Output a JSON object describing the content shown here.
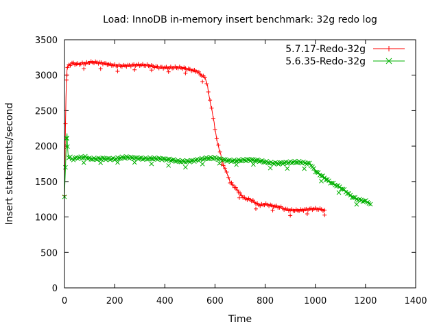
{
  "chart_data": {
    "type": "line",
    "title": "Load: InnoDB in-memory insert benchmark: 32g redo log",
    "xlabel": "Time",
    "ylabel": "Insert statements/second",
    "xlim": [
      0,
      1400
    ],
    "ylim": [
      0,
      3500
    ],
    "xticks": [
      "0",
      "200",
      "400",
      "600",
      "800",
      "1000",
      "1200",
      "1400"
    ],
    "yticks": [
      "0",
      "500",
      "1000",
      "1500",
      "2000",
      "2500",
      "3000",
      "3500"
    ],
    "grid": false,
    "legend_position": "top-right",
    "series": [
      {
        "name": "5.7.17-Redo-32g",
        "color": "#ff0000",
        "marker": "plus",
        "x": [
          0,
          2,
          4,
          6,
          8,
          10,
          12,
          15,
          20,
          30,
          50,
          80,
          100,
          150,
          200,
          250,
          300,
          350,
          400,
          450,
          500,
          530,
          550,
          560,
          570,
          580,
          590,
          600,
          610,
          620,
          630,
          640,
          650,
          660,
          680,
          700,
          720,
          740,
          760,
          780,
          800,
          830,
          860,
          900,
          950,
          1000,
          1040
        ],
        "y": [
          1300,
          1800,
          2300,
          2700,
          2950,
          3050,
          3100,
          3150,
          3160,
          3170,
          3170,
          3180,
          3175,
          3160,
          3150,
          3140,
          3130,
          3130,
          3120,
          3100,
          3070,
          3040,
          3000,
          2950,
          2850,
          2650,
          2450,
          2250,
          2050,
          1900,
          1780,
          1680,
          1580,
          1500,
          1400,
          1330,
          1270,
          1230,
          1200,
          1180,
          1170,
          1150,
          1130,
          1110,
          1100,
          1100,
          1100
        ]
      },
      {
        "name": "5.6.35-Redo-32g",
        "color": "#00b000",
        "marker": "cross",
        "x": [
          0,
          2,
          4,
          6,
          8,
          10,
          12,
          15,
          20,
          30,
          50,
          80,
          100,
          150,
          200,
          250,
          300,
          350,
          400,
          450,
          500,
          550,
          600,
          650,
          700,
          750,
          800,
          850,
          900,
          950,
          980,
          1000,
          1030,
          1060,
          1100,
          1140,
          1180,
          1220
        ],
        "y": [
          1300,
          1500,
          1700,
          1900,
          2100,
          2200,
          2000,
          1850,
          1830,
          1820,
          1820,
          1830,
          1820,
          1840,
          1810,
          1830,
          1840,
          1830,
          1800,
          1790,
          1800,
          1810,
          1820,
          1810,
          1800,
          1790,
          1780,
          1770,
          1760,
          1760,
          1740,
          1660,
          1580,
          1500,
          1400,
          1310,
          1240,
          1180
        ]
      }
    ]
  }
}
